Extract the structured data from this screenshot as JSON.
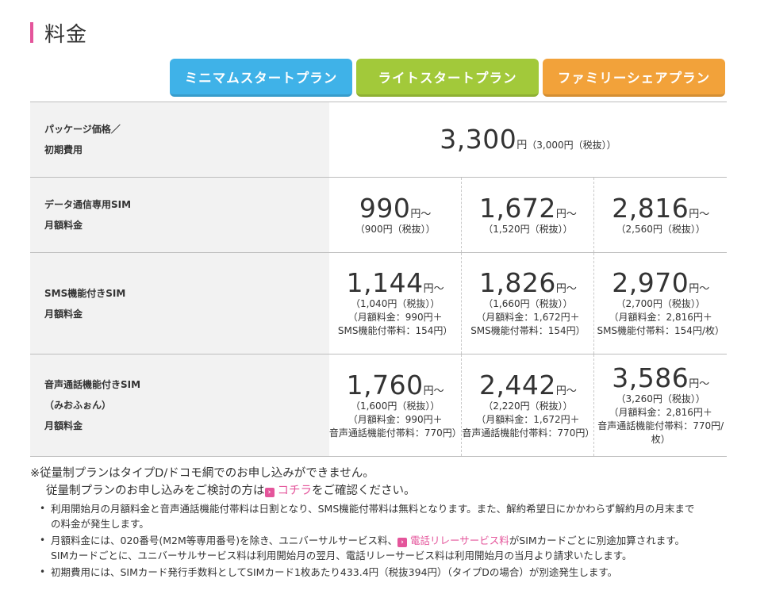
{
  "section": {
    "title": "料金",
    "accent": "#e4559b"
  },
  "plans": [
    {
      "label": "ミニマムスタートプラン",
      "color": "#3fb2e8"
    },
    {
      "label": "ライトスタートプラン",
      "color": "#a2c93a"
    },
    {
      "label": "ファミリーシェアプラン",
      "color": "#f2a23a"
    }
  ],
  "table": {
    "package": {
      "label1": "パッケージ価格／",
      "label2": "初期費用",
      "price": "3,300",
      "unit": "円",
      "tax": "（3,000円（税抜））"
    },
    "data_sim": {
      "label1": "データ通信専用SIM",
      "label2": "月額料金",
      "cells": [
        {
          "price": "990",
          "unit": "円〜",
          "tax": "（900円（税抜））"
        },
        {
          "price": "1,672",
          "unit": "円〜",
          "tax": "（1,520円（税抜））"
        },
        {
          "price": "2,816",
          "unit": "円〜",
          "tax": "（2,560円（税抜））"
        }
      ]
    },
    "sms_sim": {
      "label1": "SMS機能付きSIM",
      "label2": "月額料金",
      "cells": [
        {
          "price": "1,144",
          "unit": "円〜",
          "tax": "（1,040円（税抜））",
          "d1": "（月額料金：990円＋",
          "d2": "SMS機能付帯料：154円）"
        },
        {
          "price": "1,826",
          "unit": "円〜",
          "tax": "（1,660円（税抜））",
          "d1": "（月額料金：1,672円＋",
          "d2": "SMS機能付帯料：154円）"
        },
        {
          "price": "2,970",
          "unit": "円〜",
          "tax": "（2,700円（税抜））",
          "d1": "（月額料金：2,816円＋",
          "d2": "SMS機能付帯料：154円/枚）"
        }
      ]
    },
    "voice_sim": {
      "label1": "音声通話機能付きSIM",
      "label2": "（みおふぉん）",
      "label3": "月額料金",
      "cells": [
        {
          "price": "1,760",
          "unit": "円〜",
          "tax": "（1,600円（税抜））",
          "d1": "（月額料金：990円＋",
          "d2": "音声通話機能付帯料：770円）"
        },
        {
          "price": "2,442",
          "unit": "円〜",
          "tax": "（2,220円（税抜））",
          "d1": "（月額料金：1,672円＋",
          "d2": "音声通話機能付帯料：770円）"
        },
        {
          "price": "3,586",
          "unit": "円〜",
          "tax": "（3,260円（税抜））",
          "d1": "（月額料金：2,816円＋",
          "d2": "音声通話機能付帯料：770円/枚）"
        }
      ]
    }
  },
  "notes": {
    "main1": "※従量制プランはタイプD/ドコモ網でのお申し込みができません。",
    "main2_pre": "従量制プランのお申し込みをご検討の方は",
    "main2_link": "コチラ",
    "main2_post": "をご確認ください。",
    "b1": "利用開始月の月額料金と音声通話機能付帯料は日割となり、SMS機能付帯料は無料となります。また、解約希望日にかかわらず解約月の月末まで",
    "b1b": "の料金が発生します。",
    "b2_pre": "月額料金には、020番号(M2M等専用番号)を除き、ユニバーサルサービス料、",
    "b2_link": "電話リレーサービス料",
    "b2_post": "がSIMカードごとに別途加算されます。",
    "b2b": "SIMカードごとに、ユニバーサルサービス料は利用開始月の翌月、電話リレーサービス料は利用開始月の当月より請求いたします。",
    "b3": "初期費用には、SIMカード発行手数料としてSIMカード1枚あたり433.4円（税抜394円）（タイプDの場合）が別途発生します。"
  }
}
